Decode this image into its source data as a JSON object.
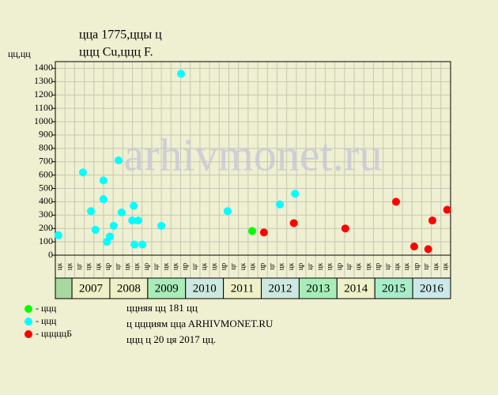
{
  "chart_data": {
    "type": "scatter",
    "title": "ццa 1775,ццы ц",
    "subtitle": "ццц Cu,ццц F.",
    "y_label": "цц,цц",
    "watermark": "arhivmonet.ru",
    "xlim": [
      2006.56,
      2017
    ],
    "ylim": [
      0,
      1450
    ],
    "yticks": [
      0,
      100,
      200,
      300,
      400,
      500,
      600,
      700,
      800,
      900,
      1000,
      1100,
      1200,
      1300,
      1400
    ],
    "grid": true,
    "period_labels": [
      "цк",
      "цк",
      "цг",
      "цк",
      "цк",
      "цр",
      "цг",
      "цк",
      "цк",
      "цр",
      "цг",
      "цк",
      "цк",
      "цр",
      "цг",
      "цк",
      "цк",
      "цр",
      "цг",
      "цк",
      "цк",
      "цр",
      "цг",
      "цк",
      "цк",
      "цр",
      "цг",
      "цк",
      "цк",
      "цр",
      "цг",
      "цк",
      "цк",
      "цр",
      "цг",
      "цк",
      "цк",
      "цр",
      "цг",
      "цк",
      "цк"
    ],
    "years": [
      "2007",
      "2008",
      "2009",
      "2010",
      "2011",
      "2012",
      "2013",
      "2014",
      "2015",
      "2016"
    ],
    "year_colors": [
      "#a8d8a0",
      "#eef0c8",
      "#eef0c8",
      "#a8ecb8",
      "#cce8e0",
      "#eef0c8",
      "#cce8e0",
      "#a8ecb8",
      "#eef0c8",
      "#a8ecc8",
      "#cce8e8"
    ],
    "series": [
      {
        "name": "- ццц",
        "color": "#00ff00",
        "x": [
          2011.76
        ],
        "values": [
          181
        ]
      },
      {
        "name": "- ццц",
        "color": "#00ffff",
        "x": [
          2006.64,
          2007.29,
          2007.5,
          2007.62,
          2007.83,
          2007.83,
          2007.92,
          2008.0,
          2008.1,
          2008.23,
          2008.31,
          2008.63,
          2008.59,
          2008.65,
          2008.75,
          2008.86,
          2009.36,
          2009.88,
          2011.11,
          2012.49,
          2012.89
        ],
        "values": [
          150,
          620,
          330,
          190,
          560,
          420,
          100,
          140,
          220,
          710,
          320,
          370,
          260,
          80,
          260,
          80,
          220,
          1360,
          330,
          380,
          460
        ]
      },
      {
        "name": "- цццццБ",
        "color": "#ff0000",
        "x": [
          2012.07,
          2012.86,
          2014.22,
          2015.56,
          2016.04,
          2016.41,
          2016.52,
          2016.91
        ],
        "values": [
          170,
          240,
          200,
          400,
          65,
          45,
          260,
          340
        ]
      }
    ],
    "notes": [
      "ццняя цц 181 цц",
      "ц ццциям ццa ARHIVMONET.RU",
      "ццц ц 20 ця 2017 цц."
    ]
  }
}
